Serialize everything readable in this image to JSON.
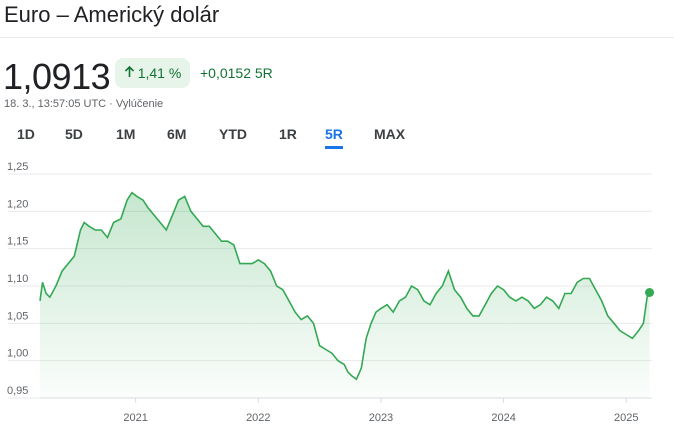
{
  "header": {
    "title": "Euro – Americký dolár",
    "price": "1,0913",
    "change_pct": "1,41 %",
    "change_abs": "+0,0152 5R",
    "timestamp": "18. 3., 13:57:05 UTC · Vylúčenie",
    "up_arrow_icon": "arrow-up-icon"
  },
  "tabs": [
    {
      "label": "1D"
    },
    {
      "label": "5D"
    },
    {
      "label": "1M"
    },
    {
      "label": "6M"
    },
    {
      "label": "YTD"
    },
    {
      "label": "1R"
    },
    {
      "label": "5R"
    },
    {
      "label": "MAX"
    }
  ],
  "active_tab": "5R",
  "colors": {
    "positive": "#137333",
    "line": "#34a853",
    "badge_bg": "#e6f4ea",
    "accent": "#1a73e8"
  },
  "chart_data": {
    "type": "area",
    "title": "",
    "xlabel": "",
    "ylabel": "",
    "ylim": [
      0.95,
      1.25
    ],
    "xlim": [
      2020.22,
      2025.21
    ],
    "y_ticks": [
      "1,25",
      "1,20",
      "1,15",
      "1,10",
      "1,05",
      "1,00",
      "0,95"
    ],
    "x_ticks": [
      "2021",
      "2022",
      "2023",
      "2024",
      "2025"
    ],
    "grid": "horizontal",
    "series": [
      {
        "values": [
          [
            2020.22,
            1.08
          ],
          [
            2020.24,
            1.105
          ],
          [
            2020.27,
            1.09
          ],
          [
            2020.3,
            1.085
          ],
          [
            2020.35,
            1.1
          ],
          [
            2020.4,
            1.12
          ],
          [
            2020.45,
            1.13
          ],
          [
            2020.5,
            1.14
          ],
          [
            2020.55,
            1.175
          ],
          [
            2020.58,
            1.185
          ],
          [
            2020.62,
            1.18
          ],
          [
            2020.67,
            1.175
          ],
          [
            2020.72,
            1.175
          ],
          [
            2020.77,
            1.165
          ],
          [
            2020.82,
            1.185
          ],
          [
            2020.88,
            1.19
          ],
          [
            2020.93,
            1.215
          ],
          [
            2020.97,
            1.225
          ],
          [
            2021.01,
            1.22
          ],
          [
            2021.06,
            1.215
          ],
          [
            2021.1,
            1.205
          ],
          [
            2021.15,
            1.195
          ],
          [
            2021.2,
            1.185
          ],
          [
            2021.25,
            1.175
          ],
          [
            2021.3,
            1.195
          ],
          [
            2021.35,
            1.215
          ],
          [
            2021.4,
            1.22
          ],
          [
            2021.45,
            1.2
          ],
          [
            2021.5,
            1.19
          ],
          [
            2021.55,
            1.18
          ],
          [
            2021.6,
            1.18
          ],
          [
            2021.65,
            1.17
          ],
          [
            2021.7,
            1.16
          ],
          [
            2021.75,
            1.16
          ],
          [
            2021.8,
            1.155
          ],
          [
            2021.85,
            1.13
          ],
          [
            2021.9,
            1.13
          ],
          [
            2021.95,
            1.13
          ],
          [
            2022.0,
            1.135
          ],
          [
            2022.05,
            1.13
          ],
          [
            2022.1,
            1.12
          ],
          [
            2022.15,
            1.1
          ],
          [
            2022.2,
            1.095
          ],
          [
            2022.25,
            1.08
          ],
          [
            2022.3,
            1.065
          ],
          [
            2022.35,
            1.055
          ],
          [
            2022.4,
            1.06
          ],
          [
            2022.45,
            1.05
          ],
          [
            2022.5,
            1.02
          ],
          [
            2022.55,
            1.015
          ],
          [
            2022.6,
            1.01
          ],
          [
            2022.65,
            1.0
          ],
          [
            2022.7,
            0.995
          ],
          [
            2022.73,
            0.985
          ],
          [
            2022.76,
            0.98
          ],
          [
            2022.8,
            0.975
          ],
          [
            2022.84,
            0.99
          ],
          [
            2022.88,
            1.03
          ],
          [
            2022.92,
            1.05
          ],
          [
            2022.96,
            1.065
          ],
          [
            2023.0,
            1.07
          ],
          [
            2023.05,
            1.075
          ],
          [
            2023.1,
            1.065
          ],
          [
            2023.15,
            1.08
          ],
          [
            2023.2,
            1.085
          ],
          [
            2023.25,
            1.1
          ],
          [
            2023.3,
            1.095
          ],
          [
            2023.35,
            1.08
          ],
          [
            2023.4,
            1.075
          ],
          [
            2023.45,
            1.09
          ],
          [
            2023.5,
            1.1
          ],
          [
            2023.55,
            1.12
          ],
          [
            2023.6,
            1.095
          ],
          [
            2023.65,
            1.085
          ],
          [
            2023.7,
            1.07
          ],
          [
            2023.75,
            1.06
          ],
          [
            2023.8,
            1.06
          ],
          [
            2023.85,
            1.075
          ],
          [
            2023.9,
            1.09
          ],
          [
            2023.95,
            1.1
          ],
          [
            2024.0,
            1.095
          ],
          [
            2024.05,
            1.085
          ],
          [
            2024.1,
            1.08
          ],
          [
            2024.15,
            1.085
          ],
          [
            2024.2,
            1.08
          ],
          [
            2024.25,
            1.07
          ],
          [
            2024.3,
            1.075
          ],
          [
            2024.35,
            1.085
          ],
          [
            2024.4,
            1.08
          ],
          [
            2024.45,
            1.07
          ],
          [
            2024.5,
            1.09
          ],
          [
            2024.55,
            1.09
          ],
          [
            2024.6,
            1.105
          ],
          [
            2024.65,
            1.11
          ],
          [
            2024.7,
            1.11
          ],
          [
            2024.75,
            1.095
          ],
          [
            2024.8,
            1.08
          ],
          [
            2024.85,
            1.06
          ],
          [
            2024.9,
            1.05
          ],
          [
            2024.95,
            1.04
          ],
          [
            2025.0,
            1.035
          ],
          [
            2025.05,
            1.03
          ],
          [
            2025.1,
            1.04
          ],
          [
            2025.14,
            1.05
          ],
          [
            2025.17,
            1.085
          ],
          [
            2025.19,
            1.0913
          ]
        ]
      }
    ]
  }
}
